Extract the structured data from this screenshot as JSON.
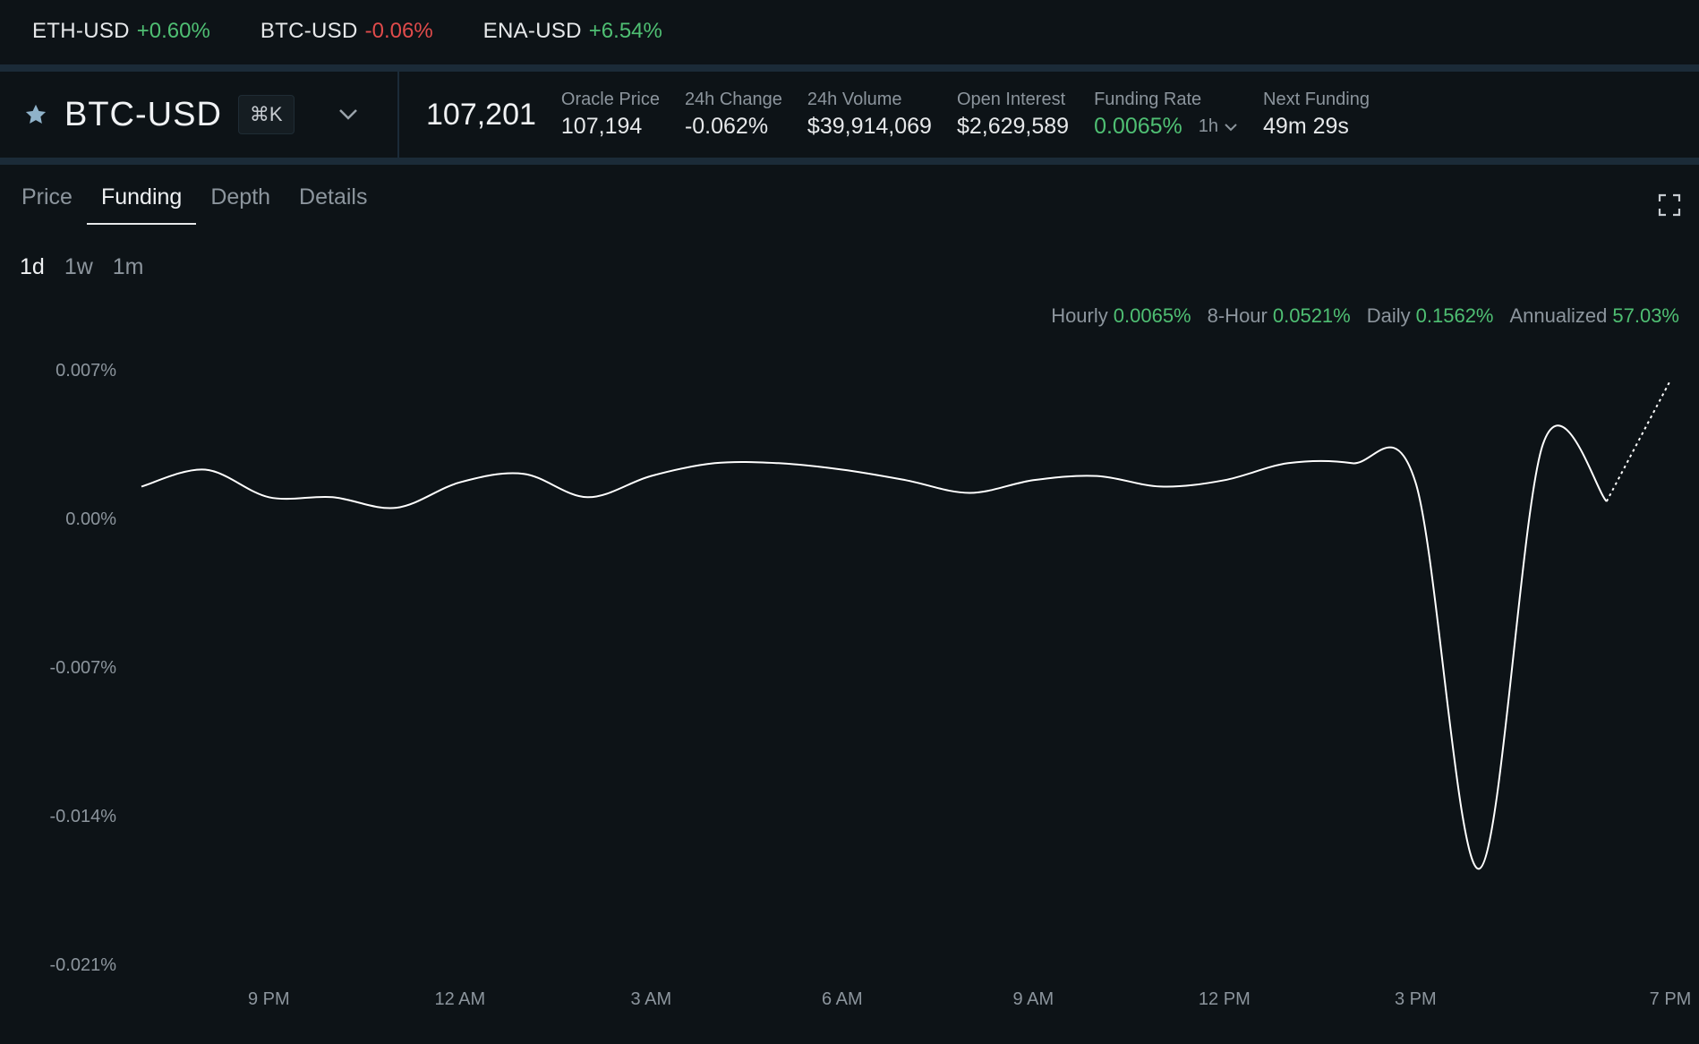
{
  "ticker": [
    {
      "symbol": "ETH-USD",
      "change": "+0.60%",
      "dir": "up"
    },
    {
      "symbol": "BTC-USD",
      "change": "-0.06%",
      "dir": "down"
    },
    {
      "symbol": "ENA-USD",
      "change": "+6.54%",
      "dir": "up"
    }
  ],
  "market": {
    "pair": "BTC-USD",
    "shortcut": "⌘K",
    "last_price": "107,201",
    "stats": [
      {
        "label": "Oracle Price",
        "value": "107,194",
        "dir": "neutral"
      },
      {
        "label": "24h Change",
        "value": "-0.062%",
        "dir": "down"
      },
      {
        "label": "24h Volume",
        "value": "$39,914,069",
        "dir": "neutral"
      },
      {
        "label": "Open Interest",
        "value": "$2,629,589",
        "dir": "neutral"
      },
      {
        "label": "Funding Rate",
        "value": "0.0065%",
        "dir": "up",
        "interval": "1h"
      },
      {
        "label": "Next Funding",
        "value": "49m 29s",
        "dir": "neutral"
      }
    ]
  },
  "tabs": [
    {
      "label": "Price",
      "active": false
    },
    {
      "label": "Funding",
      "active": true
    },
    {
      "label": "Depth",
      "active": false
    },
    {
      "label": "Details",
      "active": false
    }
  ],
  "ranges": [
    {
      "label": "1d",
      "active": true
    },
    {
      "label": "1w",
      "active": false
    },
    {
      "label": "1m",
      "active": false
    }
  ],
  "summary": [
    {
      "label": "Hourly",
      "value": "0.0065%"
    },
    {
      "label": "8-Hour",
      "value": "0.0521%"
    },
    {
      "label": "Daily",
      "value": "0.1562%"
    },
    {
      "label": "Annualized",
      "value": "57.03%"
    }
  ],
  "colors": {
    "up": "#4fbf73",
    "down": "#e04b4b",
    "line": "#ffffff",
    "accent": "#8fb2c9"
  },
  "icons": {
    "favorite": "star-icon",
    "dropdown": "chevron-down-icon",
    "fullscreen": "expand-icon"
  },
  "chart_data": {
    "type": "line",
    "ylabel": "",
    "xlabel": "",
    "yticks": [
      "0.007%",
      "0.00%",
      "-0.007%",
      "-0.014%",
      "-0.021%"
    ],
    "ytick_values": [
      0.007,
      0.0,
      -0.007,
      -0.014,
      -0.021
    ],
    "xticks": [
      "9 PM",
      "12 AM",
      "3 AM",
      "6 AM",
      "9 AM",
      "12 PM",
      "3 PM",
      "7 PM"
    ],
    "xtick_hours": [
      21,
      24,
      27,
      30,
      33,
      36,
      39,
      43
    ],
    "ylim": [
      -0.021,
      0.007
    ],
    "xlim_hours": [
      19,
      43
    ],
    "series": [
      {
        "x": [
          19,
          20,
          21,
          22,
          23,
          24,
          25,
          26,
          27,
          28,
          29,
          30,
          31,
          32,
          33,
          34,
          35,
          36,
          37,
          38,
          39,
          40,
          41,
          42
        ],
        "y": [
          0.0015,
          0.0023,
          0.001,
          0.001,
          0.0005,
          0.0017,
          0.0021,
          0.001,
          0.002,
          0.0026,
          0.0026,
          0.0023,
          0.0018,
          0.0012,
          0.0018,
          0.002,
          0.0015,
          0.0018,
          0.0026,
          0.0026,
          0.0017,
          -0.0165,
          0.0035,
          0.0008
        ]
      },
      {
        "x": [
          42,
          43
        ],
        "y": [
          0.0008,
          0.0065
        ],
        "style": "dotted"
      }
    ]
  }
}
